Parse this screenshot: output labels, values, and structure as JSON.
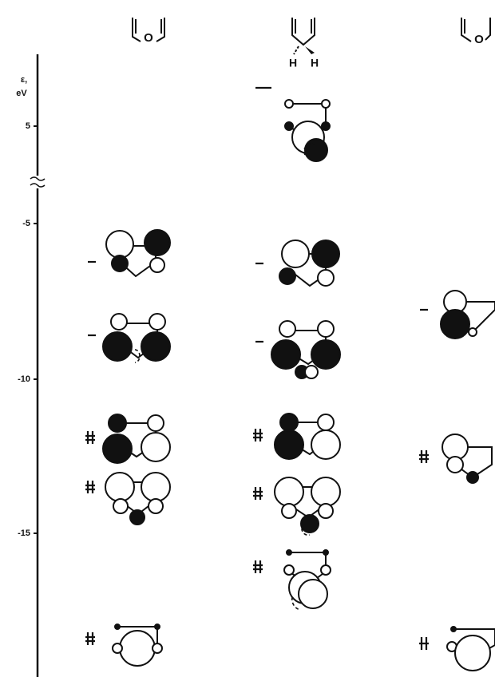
{
  "axis": {
    "label": "ε,",
    "unit": "eV",
    "ticks": [
      "5",
      "-5",
      "-10",
      "-15"
    ]
  },
  "molecules": [
    {
      "label": "O"
    },
    {
      "labels": [
        "H",
        "H"
      ]
    },
    {
      "label": "O"
    }
  ]
}
